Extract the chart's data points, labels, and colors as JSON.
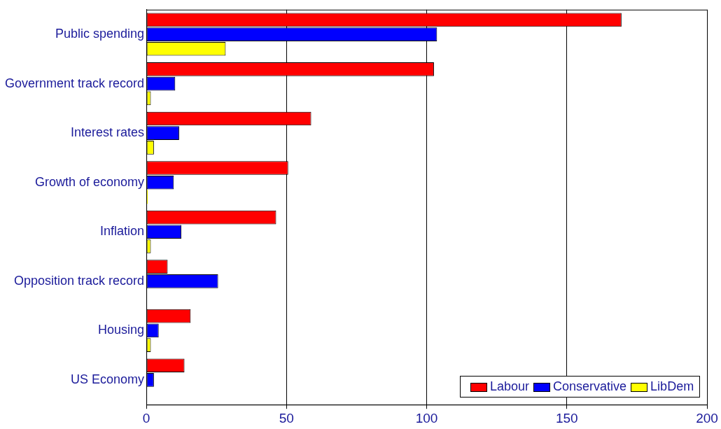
{
  "chart_data": {
    "type": "bar",
    "orientation": "horizontal",
    "categories": [
      "Public spending",
      "Government track record",
      "Interest rates",
      "Growth of economy",
      "Inflation",
      "Opposition track record",
      "Housing",
      "US Economy"
    ],
    "series": [
      {
        "name": "Labour",
        "color": "#ff0000",
        "values": [
          169.5,
          102.6,
          58.8,
          50.6,
          46.3,
          7.6,
          15.8,
          13.6
        ]
      },
      {
        "name": "Conservative",
        "color": "#0000ff",
        "values": [
          103.7,
          10.3,
          11.7,
          9.8,
          12.5,
          25.6,
          4.4,
          2.7
        ]
      },
      {
        "name": "LibDem",
        "color": "#ffff00",
        "values": [
          28.3,
          1.6,
          2.7,
          0.5,
          1.6,
          null,
          1.6,
          null
        ]
      }
    ],
    "xlim": [
      0,
      200
    ],
    "xticks": [
      0,
      50,
      100,
      150,
      200
    ],
    "grid": "x",
    "legend": "bottom right"
  }
}
